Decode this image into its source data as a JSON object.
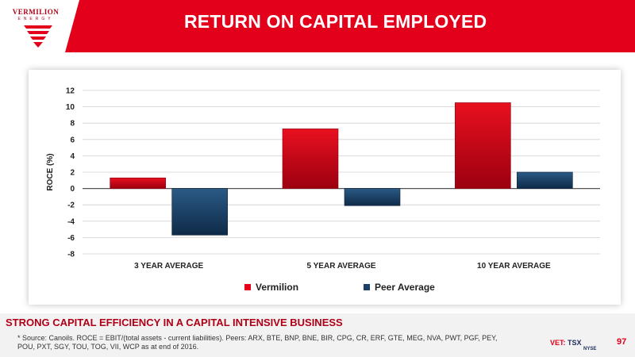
{
  "header": {
    "title": "RETURN ON CAPITAL EMPLOYED",
    "logo_name": "VERMILION",
    "logo_sub": "ENERGY"
  },
  "subtitle": "STRONG CAPITAL EFFICIENCY IN A CAPITAL INTENSIVE BUSINESS",
  "footnote": "* Source: Canoils. ROCE = EBIT/(total assets - current liabilities). Peers: ARX, BTE, BNP, BNE, BIR, CPG, CR, ERF, GTE, MEG, NVA, PWT, PGF, PEY, POU, PXT, SGY, TOU, TOG, VII, WCP as at end of 2016.",
  "exchange": {
    "ticker": "VET:",
    "tsx": "TSX",
    "nyse": "NYSE"
  },
  "page_number": "97",
  "colors": {
    "brand_red": "#e3001b",
    "navy": "#1c3f66"
  },
  "chart_data": {
    "type": "bar",
    "categories": [
      "3 YEAR AVERAGE",
      "5  YEAR AVERAGE",
      "10  YEAR AVERAGE"
    ],
    "series": [
      {
        "name": "Vermilion",
        "values": [
          1.3,
          7.3,
          10.5
        ],
        "color": "#e3001b"
      },
      {
        "name": "Peer Average",
        "values": [
          -5.7,
          -2.1,
          2.0
        ],
        "color": "#1c3f66"
      }
    ],
    "ylabel": "ROCE (%)",
    "ylim": [
      -8,
      12
    ],
    "yticks": [
      12,
      10,
      8,
      6,
      4,
      2,
      0,
      -2,
      -4,
      -6,
      -8
    ],
    "grid": true,
    "legend": "bottom"
  }
}
